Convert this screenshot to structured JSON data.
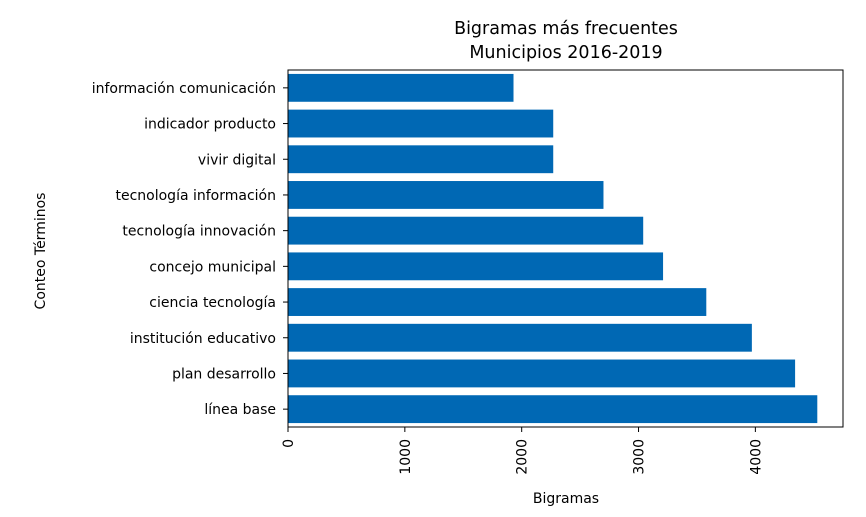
{
  "chart_data": {
    "type": "bar",
    "orientation": "horizontal",
    "title": "Bigramas más frecuentes",
    "subtitle": "Municipios 2016-2019",
    "xlabel": "Bigramas",
    "ylabel": "Conteo Términos",
    "xlim": [
      0,
      4750
    ],
    "xticks": [
      "0",
      "1000",
      "2000",
      "3000",
      "4000"
    ],
    "xtick_values": [
      0,
      1000,
      2000,
      3000,
      4000
    ],
    "grid": false,
    "bar_color": "#0068b4",
    "categories": [
      "información comunicación",
      "indicador producto",
      "vivir digital",
      "tecnología información",
      "tecnología innovación",
      "concejo municipal",
      "ciencia tecnología",
      "institución educativo",
      "plan desarrollo",
      "línea base"
    ],
    "values": [
      1930,
      2270,
      2270,
      2700,
      3040,
      3210,
      3580,
      3970,
      4340,
      4530
    ]
  }
}
